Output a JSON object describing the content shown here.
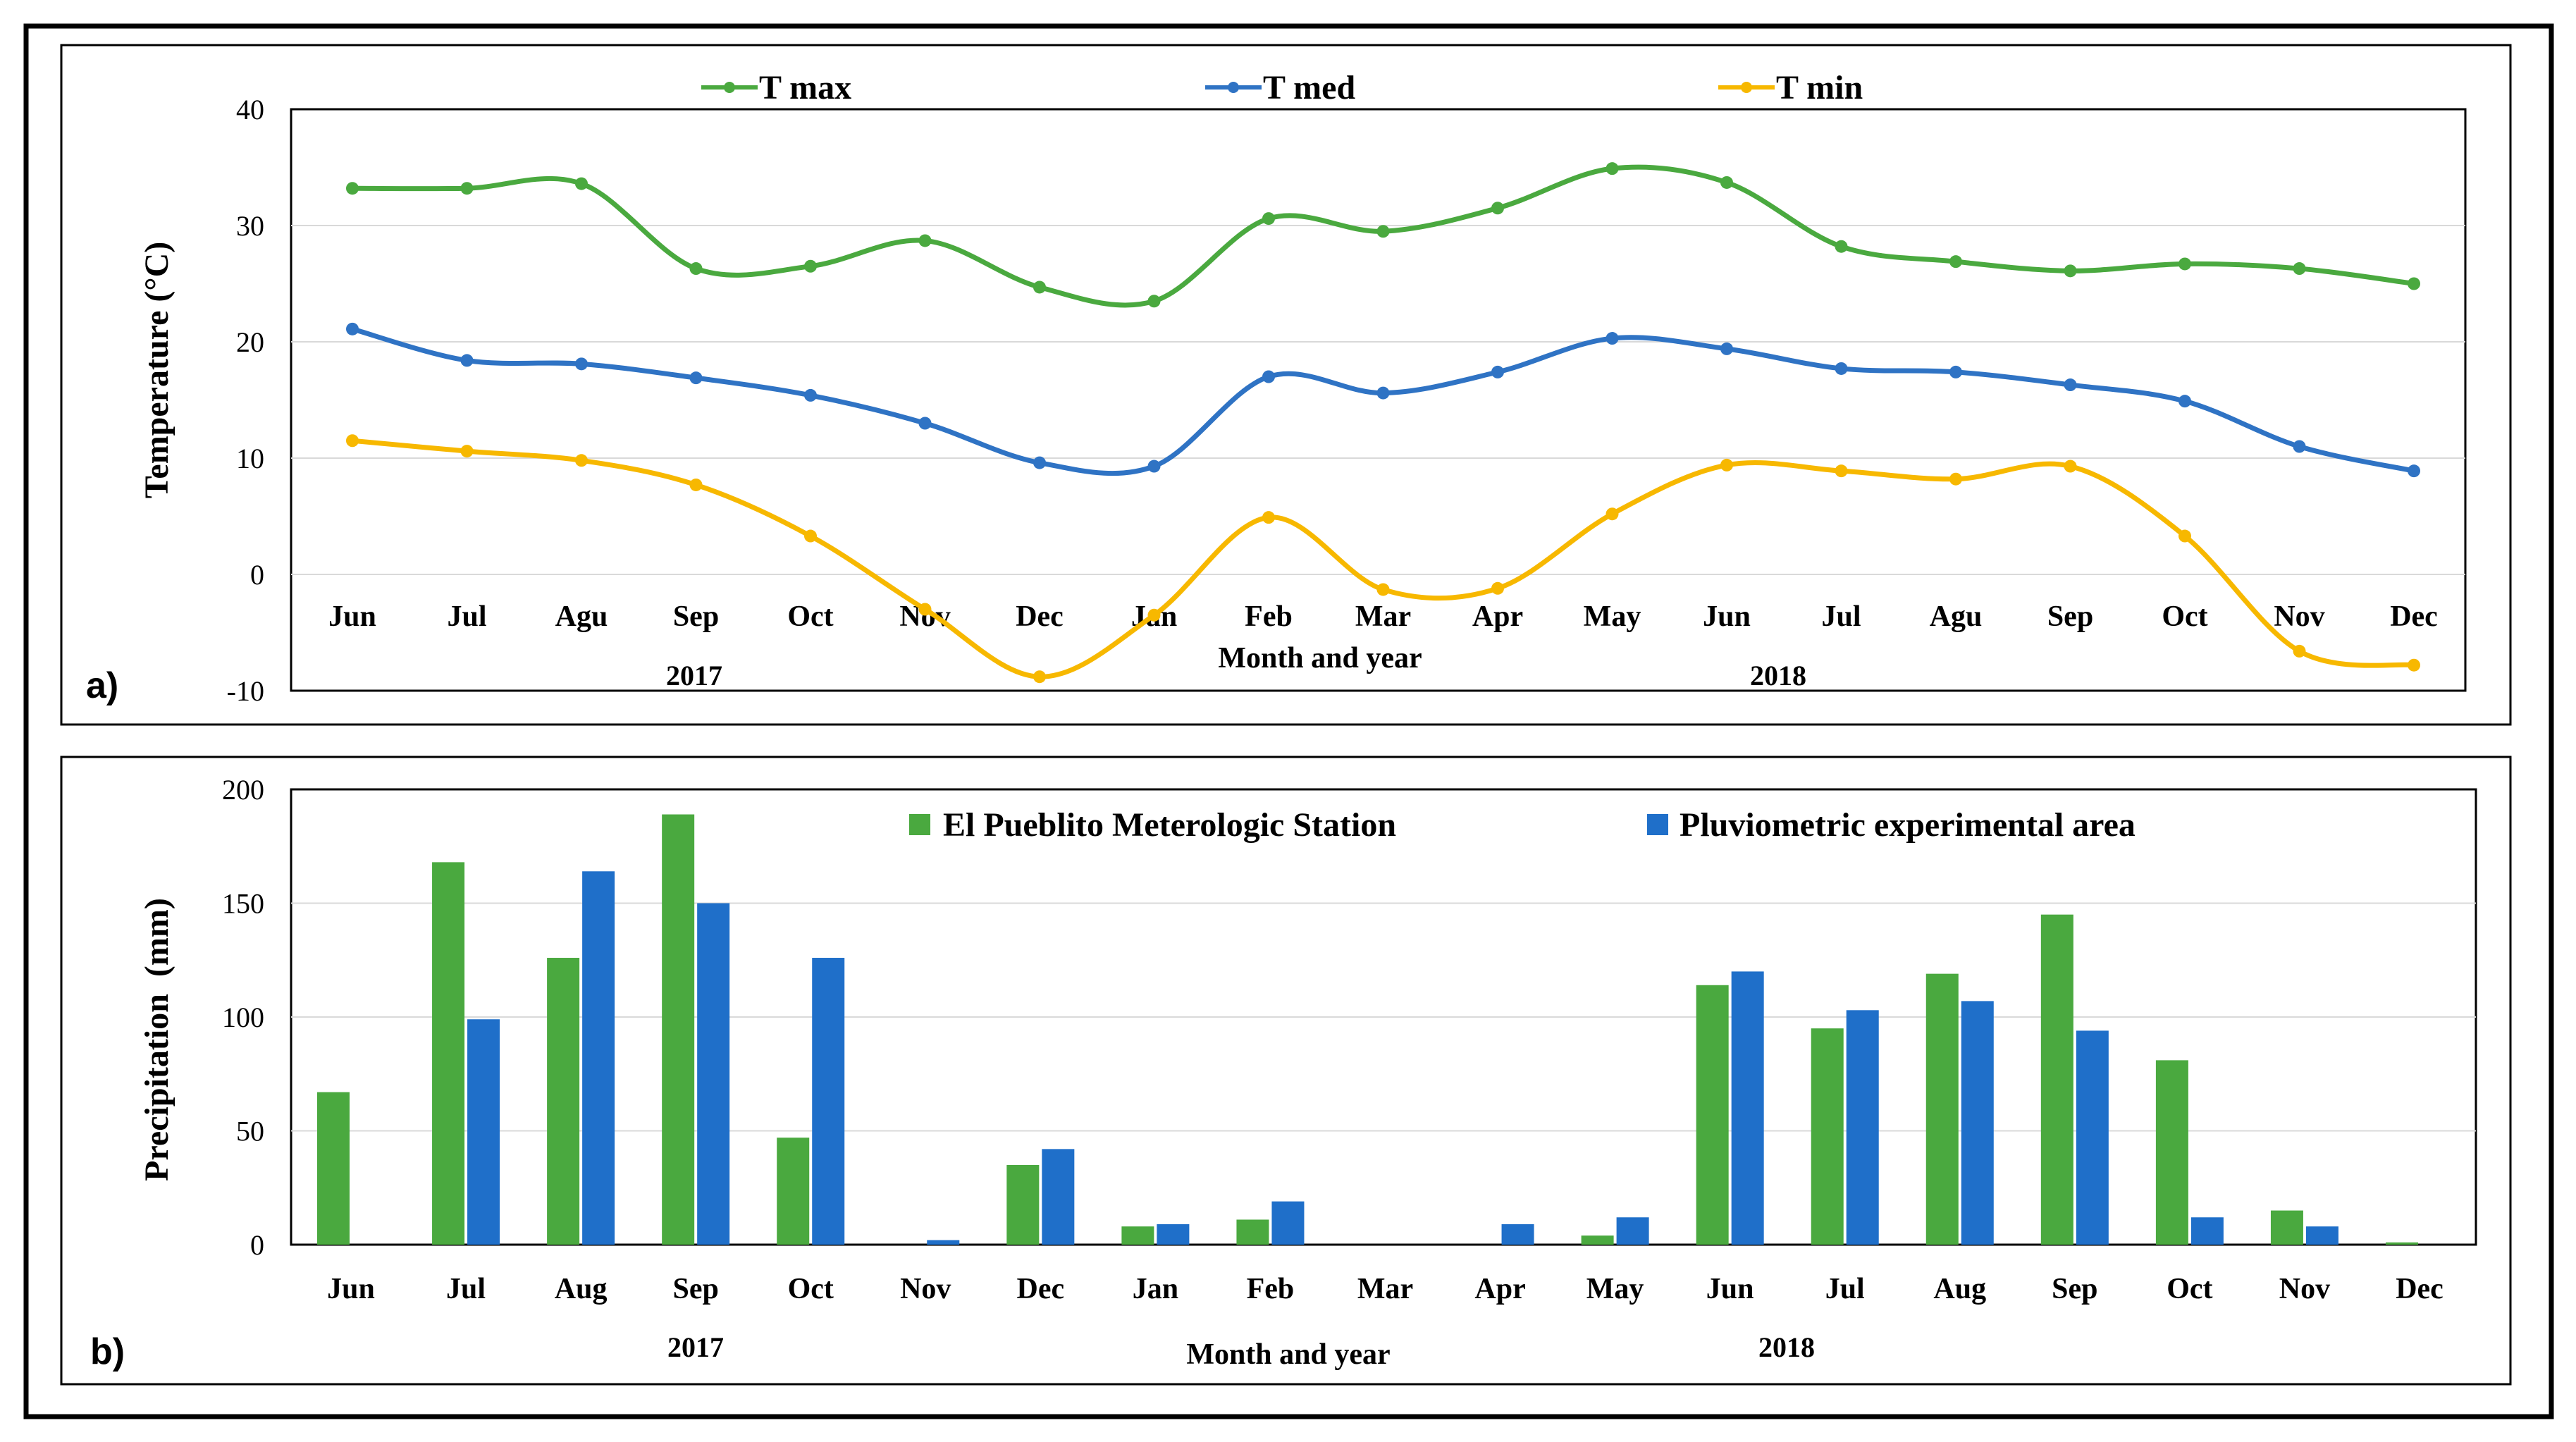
{
  "chart_data": [
    {
      "type": "line",
      "panel_label": "a)",
      "title": "",
      "xlabel": "Month and year",
      "ylabel": "Temperature (°C)",
      "ylim": [
        -10,
        40
      ],
      "yticks": [
        "40",
        "30",
        "20",
        "10",
        "0",
        "-10"
      ],
      "grid": true,
      "legend_position": "top",
      "categories": [
        "Jun",
        "Jul",
        "Agu",
        "Sep",
        "Oct",
        "Nov",
        "Dec",
        "Jan",
        "Feb",
        "Mar",
        "Apr",
        "May",
        "Jun",
        "Jul",
        "Agu",
        "Sep",
        "Oct",
        "Nov",
        "Dec"
      ],
      "year_labels": [
        "2017",
        "2018"
      ],
      "series": [
        {
          "name": "T max",
          "color": "#4aa93f",
          "values": [
            33.2,
            33.2,
            33.6,
            26.3,
            26.5,
            28.7,
            24.7,
            23.5,
            30.6,
            29.5,
            31.5,
            34.9,
            33.7,
            28.2,
            26.9,
            26.1,
            26.7,
            26.3,
            25.0
          ]
        },
        {
          "name": "T med",
          "color": "#2f73c4",
          "values": [
            21.1,
            18.4,
            18.1,
            16.9,
            15.4,
            13.0,
            9.6,
            9.3,
            17.0,
            15.6,
            17.4,
            20.3,
            19.4,
            17.7,
            17.4,
            16.3,
            14.9,
            11.0,
            8.9
          ]
        },
        {
          "name": "T min",
          "color": "#f7b800",
          "values": [
            11.5,
            10.6,
            9.8,
            7.7,
            3.3,
            -3.0,
            -8.8,
            -3.5,
            4.9,
            -1.3,
            -1.2,
            5.2,
            9.4,
            8.9,
            8.2,
            9.3,
            3.3,
            -6.6,
            -7.8
          ]
        }
      ]
    },
    {
      "type": "bar",
      "panel_label": "b)",
      "title": "",
      "xlabel": "Month and year",
      "ylabel": "Precipitation  (mm)",
      "ylim": [
        0,
        200
      ],
      "yticks": [
        "200",
        "150",
        "100",
        "50",
        "0"
      ],
      "grid": true,
      "legend_position": "top-right",
      "categories": [
        "Jun",
        "Jul",
        "Aug",
        "Sep",
        "Oct",
        "Nov",
        "Dec",
        "Jan",
        "Feb",
        "Mar",
        "Apr",
        "May",
        "Jun",
        "Jul",
        "Aug",
        "Sep",
        "Oct",
        "Nov",
        "Dec"
      ],
      "year_labels": [
        "2017",
        "2018"
      ],
      "series": [
        {
          "name": "El Pueblito Meterologic Station",
          "color": "#4aa93f",
          "values": [
            67,
            168,
            126,
            189,
            47,
            0,
            35,
            8,
            11,
            0,
            0,
            4,
            114,
            95,
            119,
            145,
            81,
            15,
            1
          ]
        },
        {
          "name": "Pluviometric experimental area",
          "color": "#1f6fc9",
          "values": [
            0,
            99,
            164,
            150,
            126,
            2,
            42,
            9,
            19,
            0,
            9,
            12,
            120,
            103,
            107,
            94,
            12,
            8,
            0
          ]
        }
      ]
    }
  ]
}
